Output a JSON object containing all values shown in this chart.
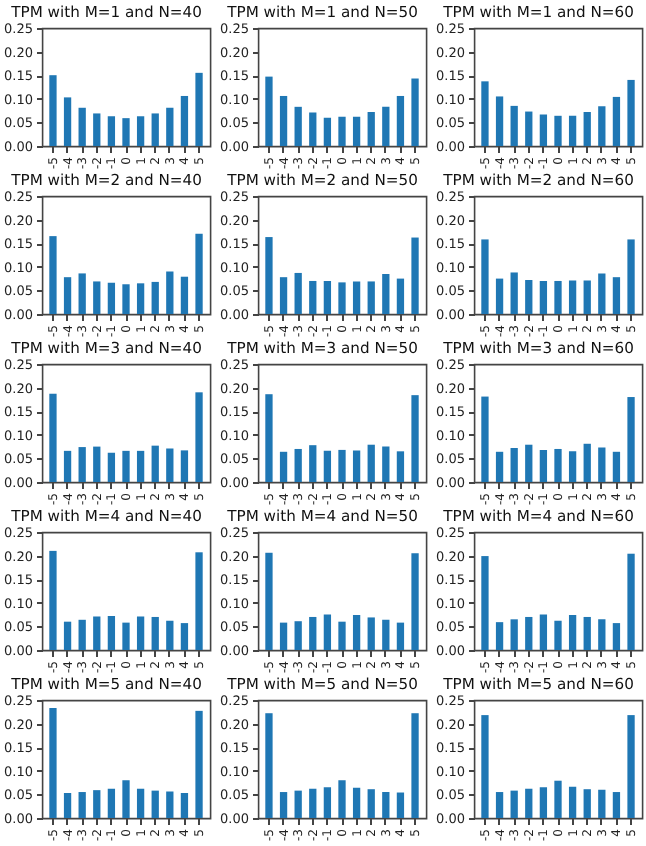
{
  "chart_data": [
    {
      "type": "bar",
      "title": "TPM with M=1 and N=40",
      "categories": [
        "-5",
        "-4",
        "-3",
        "-2",
        "-1",
        "0",
        "1",
        "2",
        "3",
        "4",
        "5"
      ],
      "values": [
        0.15,
        0.103,
        0.081,
        0.069,
        0.063,
        0.059,
        0.063,
        0.069,
        0.081,
        0.106,
        0.155
      ],
      "color": "#1f77b4",
      "ylim": [
        0,
        0.25
      ],
      "yticks": [
        {
          "value": 0,
          "label": "0.00"
        },
        {
          "value": 0.05,
          "label": "0.05"
        },
        {
          "value": 0.1,
          "label": "0.10"
        },
        {
          "value": 0.15,
          "label": "0.15"
        },
        {
          "value": 0.2,
          "label": "0.20"
        },
        {
          "value": 0.25,
          "label": "0.25"
        }
      ]
    },
    {
      "type": "bar",
      "title": "TPM with M=1 and N=50",
      "categories": [
        "-5",
        "-4",
        "-3",
        "-2",
        "-1",
        "0",
        "1",
        "2",
        "3",
        "4",
        "5"
      ],
      "values": [
        0.147,
        0.106,
        0.083,
        0.071,
        0.06,
        0.062,
        0.062,
        0.072,
        0.083,
        0.106,
        0.143
      ],
      "color": "#1f77b4",
      "ylim": [
        0,
        0.25
      ],
      "yticks": [
        {
          "value": 0,
          "label": "0.00"
        },
        {
          "value": 0.05,
          "label": "0.05"
        },
        {
          "value": 0.1,
          "label": "0.10"
        },
        {
          "value": 0.15,
          "label": "0.15"
        },
        {
          "value": 0.2,
          "label": "0.20"
        },
        {
          "value": 0.25,
          "label": "0.25"
        }
      ]
    },
    {
      "type": "bar",
      "title": "TPM with M=1 and N=60",
      "categories": [
        "-5",
        "-4",
        "-3",
        "-2",
        "-1",
        "0",
        "1",
        "2",
        "3",
        "4",
        "5"
      ],
      "values": [
        0.137,
        0.105,
        0.085,
        0.073,
        0.067,
        0.064,
        0.064,
        0.072,
        0.084,
        0.104,
        0.14
      ],
      "color": "#1f77b4",
      "ylim": [
        0,
        0.25
      ],
      "yticks": [
        {
          "value": 0,
          "label": "0.00"
        },
        {
          "value": 0.05,
          "label": "0.05"
        },
        {
          "value": 0.1,
          "label": "0.10"
        },
        {
          "value": 0.15,
          "label": "0.15"
        },
        {
          "value": 0.2,
          "label": "0.20"
        },
        {
          "value": 0.25,
          "label": "0.25"
        }
      ]
    },
    {
      "type": "bar",
      "title": "TPM with M=2 and N=40",
      "categories": [
        "-5",
        "-4",
        "-3",
        "-2",
        "-1",
        "0",
        "1",
        "2",
        "3",
        "4",
        "5"
      ],
      "values": [
        0.165,
        0.078,
        0.086,
        0.069,
        0.066,
        0.063,
        0.065,
        0.068,
        0.09,
        0.079,
        0.17
      ],
      "color": "#1f77b4",
      "ylim": [
        0,
        0.25
      ],
      "yticks": [
        {
          "value": 0,
          "label": "0.00"
        },
        {
          "value": 0.05,
          "label": "0.05"
        },
        {
          "value": 0.1,
          "label": "0.10"
        },
        {
          "value": 0.15,
          "label": "0.15"
        },
        {
          "value": 0.2,
          "label": "0.20"
        },
        {
          "value": 0.25,
          "label": "0.25"
        }
      ]
    },
    {
      "type": "bar",
      "title": "TPM with M=2 and N=50",
      "categories": [
        "-5",
        "-4",
        "-3",
        "-2",
        "-1",
        "0",
        "1",
        "2",
        "3",
        "4",
        "5"
      ],
      "values": [
        0.163,
        0.078,
        0.087,
        0.07,
        0.07,
        0.067,
        0.069,
        0.069,
        0.085,
        0.075,
        0.162
      ],
      "color": "#1f77b4",
      "ylim": [
        0,
        0.25
      ],
      "yticks": [
        {
          "value": 0,
          "label": "0.00"
        },
        {
          "value": 0.05,
          "label": "0.05"
        },
        {
          "value": 0.1,
          "label": "0.10"
        },
        {
          "value": 0.15,
          "label": "0.15"
        },
        {
          "value": 0.2,
          "label": "0.20"
        },
        {
          "value": 0.25,
          "label": "0.25"
        }
      ]
    },
    {
      "type": "bar",
      "title": "TPM with M=2 and N=60",
      "categories": [
        "-5",
        "-4",
        "-3",
        "-2",
        "-1",
        "0",
        "1",
        "2",
        "3",
        "4",
        "5"
      ],
      "values": [
        0.158,
        0.075,
        0.088,
        0.072,
        0.07,
        0.07,
        0.071,
        0.071,
        0.086,
        0.078,
        0.158
      ],
      "color": "#1f77b4",
      "ylim": [
        0,
        0.25
      ],
      "yticks": [
        {
          "value": 0,
          "label": "0.00"
        },
        {
          "value": 0.05,
          "label": "0.05"
        },
        {
          "value": 0.1,
          "label": "0.10"
        },
        {
          "value": 0.15,
          "label": "0.15"
        },
        {
          "value": 0.2,
          "label": "0.20"
        },
        {
          "value": 0.25,
          "label": "0.25"
        }
      ]
    },
    {
      "type": "bar",
      "title": "TPM with M=3 and N=40",
      "categories": [
        "-5",
        "-4",
        "-3",
        "-2",
        "-1",
        "0",
        "1",
        "2",
        "3",
        "4",
        "5"
      ],
      "values": [
        0.187,
        0.066,
        0.074,
        0.075,
        0.062,
        0.066,
        0.066,
        0.077,
        0.071,
        0.067,
        0.19
      ],
      "color": "#1f77b4",
      "ylim": [
        0,
        0.25
      ],
      "yticks": [
        {
          "value": 0,
          "label": "0.00"
        },
        {
          "value": 0.05,
          "label": "0.05"
        },
        {
          "value": 0.1,
          "label": "0.10"
        },
        {
          "value": 0.15,
          "label": "0.15"
        },
        {
          "value": 0.2,
          "label": "0.20"
        },
        {
          "value": 0.25,
          "label": "0.25"
        }
      ]
    },
    {
      "type": "bar",
      "title": "TPM with M=3 and N=50",
      "categories": [
        "-5",
        "-4",
        "-3",
        "-2",
        "-1",
        "0",
        "1",
        "2",
        "3",
        "4",
        "5"
      ],
      "values": [
        0.186,
        0.064,
        0.07,
        0.078,
        0.066,
        0.068,
        0.067,
        0.079,
        0.075,
        0.065,
        0.184
      ],
      "color": "#1f77b4",
      "ylim": [
        0,
        0.25
      ],
      "yticks": [
        {
          "value": 0,
          "label": "0.00"
        },
        {
          "value": 0.05,
          "label": "0.05"
        },
        {
          "value": 0.1,
          "label": "0.10"
        },
        {
          "value": 0.15,
          "label": "0.15"
        },
        {
          "value": 0.2,
          "label": "0.20"
        },
        {
          "value": 0.25,
          "label": "0.25"
        }
      ]
    },
    {
      "type": "bar",
      "title": "TPM with M=3 and N=60",
      "categories": [
        "-5",
        "-4",
        "-3",
        "-2",
        "-1",
        "0",
        "1",
        "2",
        "3",
        "4",
        "5"
      ],
      "values": [
        0.181,
        0.064,
        0.072,
        0.079,
        0.068,
        0.07,
        0.065,
        0.081,
        0.073,
        0.064,
        0.18
      ],
      "color": "#1f77b4",
      "ylim": [
        0,
        0.25
      ],
      "yticks": [
        {
          "value": 0,
          "label": "0.00"
        },
        {
          "value": 0.05,
          "label": "0.05"
        },
        {
          "value": 0.1,
          "label": "0.10"
        },
        {
          "value": 0.15,
          "label": "0.15"
        },
        {
          "value": 0.2,
          "label": "0.20"
        },
        {
          "value": 0.25,
          "label": "0.25"
        }
      ]
    },
    {
      "type": "bar",
      "title": "TPM with M=4 and N=40",
      "categories": [
        "-5",
        "-4",
        "-3",
        "-2",
        "-1",
        "0",
        "1",
        "2",
        "3",
        "4",
        "5"
      ],
      "values": [
        0.21,
        0.06,
        0.064,
        0.071,
        0.072,
        0.058,
        0.071,
        0.07,
        0.062,
        0.057,
        0.207
      ],
      "color": "#1f77b4",
      "ylim": [
        0,
        0.25
      ],
      "yticks": [
        {
          "value": 0,
          "label": "0.00"
        },
        {
          "value": 0.05,
          "label": "0.05"
        },
        {
          "value": 0.1,
          "label": "0.10"
        },
        {
          "value": 0.15,
          "label": "0.15"
        },
        {
          "value": 0.2,
          "label": "0.20"
        },
        {
          "value": 0.25,
          "label": "0.25"
        }
      ]
    },
    {
      "type": "bar",
      "title": "TPM with M=4 and N=50",
      "categories": [
        "-5",
        "-4",
        "-3",
        "-2",
        "-1",
        "0",
        "1",
        "2",
        "3",
        "4",
        "5"
      ],
      "values": [
        0.206,
        0.058,
        0.061,
        0.07,
        0.075,
        0.06,
        0.074,
        0.069,
        0.064,
        0.058,
        0.205
      ],
      "color": "#1f77b4",
      "ylim": [
        0,
        0.25
      ],
      "yticks": [
        {
          "value": 0,
          "label": "0.00"
        },
        {
          "value": 0.05,
          "label": "0.05"
        },
        {
          "value": 0.1,
          "label": "0.10"
        },
        {
          "value": 0.15,
          "label": "0.15"
        },
        {
          "value": 0.2,
          "label": "0.20"
        },
        {
          "value": 0.25,
          "label": "0.25"
        }
      ]
    },
    {
      "type": "bar",
      "title": "TPM with M=4 and N=60",
      "categories": [
        "-5",
        "-4",
        "-3",
        "-2",
        "-1",
        "0",
        "1",
        "2",
        "3",
        "4",
        "5"
      ],
      "values": [
        0.199,
        0.059,
        0.065,
        0.07,
        0.075,
        0.062,
        0.074,
        0.07,
        0.065,
        0.057,
        0.204
      ],
      "color": "#1f77b4",
      "ylim": [
        0,
        0.25
      ],
      "yticks": [
        {
          "value": 0,
          "label": "0.00"
        },
        {
          "value": 0.05,
          "label": "0.05"
        },
        {
          "value": 0.1,
          "label": "0.10"
        },
        {
          "value": 0.15,
          "label": "0.15"
        },
        {
          "value": 0.2,
          "label": "0.20"
        },
        {
          "value": 0.25,
          "label": "0.25"
        }
      ]
    },
    {
      "type": "bar",
      "title": "TPM with M=5 and N=40",
      "categories": [
        "-5",
        "-4",
        "-3",
        "-2",
        "-1",
        "0",
        "1",
        "2",
        "3",
        "4",
        "5"
      ],
      "values": [
        0.233,
        0.053,
        0.055,
        0.059,
        0.062,
        0.08,
        0.062,
        0.058,
        0.056,
        0.053,
        0.227
      ],
      "color": "#1f77b4",
      "ylim": [
        0,
        0.25
      ],
      "yticks": [
        {
          "value": 0,
          "label": "0.00"
        },
        {
          "value": 0.05,
          "label": "0.05"
        },
        {
          "value": 0.1,
          "label": "0.10"
        },
        {
          "value": 0.15,
          "label": "0.15"
        },
        {
          "value": 0.2,
          "label": "0.20"
        },
        {
          "value": 0.25,
          "label": "0.25"
        }
      ]
    },
    {
      "type": "bar",
      "title": "TPM with M=5 and N=50",
      "categories": [
        "-5",
        "-4",
        "-3",
        "-2",
        "-1",
        "0",
        "1",
        "2",
        "3",
        "4",
        "5"
      ],
      "values": [
        0.222,
        0.055,
        0.058,
        0.062,
        0.065,
        0.08,
        0.064,
        0.061,
        0.055,
        0.054,
        0.222
      ],
      "color": "#1f77b4",
      "ylim": [
        0,
        0.25
      ],
      "yticks": [
        {
          "value": 0,
          "label": "0.00"
        },
        {
          "value": 0.05,
          "label": "0.05"
        },
        {
          "value": 0.1,
          "label": "0.10"
        },
        {
          "value": 0.15,
          "label": "0.15"
        },
        {
          "value": 0.2,
          "label": "0.20"
        },
        {
          "value": 0.25,
          "label": "0.25"
        }
      ]
    },
    {
      "type": "bar",
      "title": "TPM with M=5 and N=60",
      "categories": [
        "-5",
        "-4",
        "-3",
        "-2",
        "-1",
        "0",
        "1",
        "2",
        "3",
        "4",
        "5"
      ],
      "values": [
        0.218,
        0.055,
        0.058,
        0.062,
        0.065,
        0.079,
        0.066,
        0.061,
        0.06,
        0.055,
        0.218
      ],
      "color": "#1f77b4",
      "ylim": [
        0,
        0.25
      ],
      "yticks": [
        {
          "value": 0,
          "label": "0.00"
        },
        {
          "value": 0.05,
          "label": "0.05"
        },
        {
          "value": 0.1,
          "label": "0.10"
        },
        {
          "value": 0.15,
          "label": "0.15"
        },
        {
          "value": 0.2,
          "label": "0.20"
        },
        {
          "value": 0.25,
          "label": "0.25"
        }
      ]
    }
  ]
}
